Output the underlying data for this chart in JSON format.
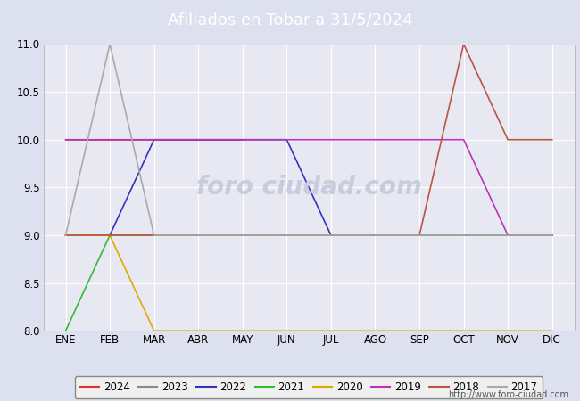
{
  "title": "Afiliados en Tobar a 31/5/2024",
  "xlabel": "",
  "ylabel": "",
  "ylim": [
    8.0,
    11.0
  ],
  "yticks": [
    8.0,
    8.5,
    9.0,
    9.5,
    10.0,
    10.5,
    11.0
  ],
  "months": [
    "ENE",
    "FEB",
    "MAR",
    "ABR",
    "MAY",
    "JUN",
    "JUL",
    "AGO",
    "SEP",
    "OCT",
    "NOV",
    "DIC"
  ],
  "month_indices": [
    1,
    2,
    3,
    4,
    5,
    6,
    7,
    8,
    9,
    10,
    11,
    12
  ],
  "background_color": "#dde0ef",
  "plot_bg_color": "#e8e8f2",
  "title_bg_color": "#5577cc",
  "title_text_color": "#ffffff",
  "url": "http://www.foro-ciudad.com",
  "series": [
    {
      "label": "2024",
      "color": "#dd3333",
      "data": [
        [
          1,
          10
        ],
        [
          2,
          10
        ],
        [
          3,
          10
        ],
        [
          4,
          10
        ],
        [
          5,
          10
        ]
      ],
      "linestyle": "-"
    },
    {
      "label": "2023",
      "color": "#888888",
      "data": [
        [
          1,
          9
        ],
        [
          2,
          9
        ],
        [
          3,
          9
        ],
        [
          4,
          9
        ],
        [
          5,
          9
        ],
        [
          6,
          9
        ],
        [
          7,
          9
        ],
        [
          8,
          9
        ],
        [
          9,
          9
        ],
        [
          10,
          9
        ],
        [
          11,
          9
        ],
        [
          12,
          9
        ]
      ],
      "linestyle": "-"
    },
    {
      "label": "2022",
      "color": "#3333bb",
      "data": [
        [
          1,
          9
        ],
        [
          2,
          9
        ],
        [
          3,
          10
        ],
        [
          4,
          10
        ],
        [
          5,
          10
        ],
        [
          6,
          10
        ],
        [
          7,
          9
        ],
        [
          8,
          9
        ],
        [
          9,
          9
        ],
        [
          10,
          9
        ],
        [
          11,
          9
        ],
        [
          12,
          9
        ]
      ],
      "linestyle": "-"
    },
    {
      "label": "2021",
      "color": "#33bb33",
      "data": [
        [
          1,
          8
        ],
        [
          2,
          9
        ],
        [
          3,
          9
        ],
        [
          4,
          9
        ],
        [
          5,
          9
        ],
        [
          6,
          9
        ],
        [
          7,
          9
        ],
        [
          8,
          9
        ],
        [
          9,
          9
        ],
        [
          10,
          9
        ],
        [
          11,
          9
        ],
        [
          12,
          9
        ]
      ],
      "linestyle": "-"
    },
    {
      "label": "2020",
      "color": "#ddaa00",
      "data": [
        [
          1,
          9
        ],
        [
          2,
          9
        ],
        [
          3,
          8
        ],
        [
          4,
          8
        ],
        [
          5,
          8
        ],
        [
          6,
          8
        ],
        [
          7,
          8
        ],
        [
          8,
          8
        ],
        [
          9,
          8
        ],
        [
          10,
          8
        ],
        [
          11,
          8
        ],
        [
          12,
          8
        ]
      ],
      "linestyle": "-"
    },
    {
      "label": "2019",
      "color": "#bb33bb",
      "data": [
        [
          1,
          10
        ],
        [
          2,
          10
        ],
        [
          3,
          10
        ],
        [
          4,
          10
        ],
        [
          5,
          10
        ],
        [
          6,
          10
        ],
        [
          7,
          10
        ],
        [
          8,
          10
        ],
        [
          9,
          10
        ],
        [
          10,
          10
        ],
        [
          11,
          9
        ],
        [
          12,
          9
        ]
      ],
      "linestyle": "-"
    },
    {
      "label": "2018",
      "color": "#bb5544",
      "data": [
        [
          1,
          9
        ],
        [
          2,
          9
        ],
        [
          3,
          9
        ],
        [
          4,
          9
        ],
        [
          5,
          9
        ],
        [
          6,
          9
        ],
        [
          7,
          9
        ],
        [
          8,
          9
        ],
        [
          9,
          9
        ],
        [
          10,
          11
        ],
        [
          11,
          10
        ],
        [
          12,
          10
        ]
      ],
      "linestyle": "-"
    },
    {
      "label": "2017",
      "color": "#aaaaaa",
      "data": [
        [
          1,
          9
        ],
        [
          2,
          11
        ],
        [
          3,
          9
        ],
        [
          4,
          9
        ],
        [
          5,
          9
        ],
        [
          6,
          9
        ],
        [
          7,
          9
        ],
        [
          8,
          9
        ],
        [
          9,
          9
        ],
        [
          10,
          9
        ],
        [
          11,
          9
        ],
        [
          12,
          9
        ]
      ],
      "linestyle": "-"
    }
  ],
  "grid_color": "#ffffff",
  "tick_fontsize": 8.5,
  "legend_fontsize": 8.5,
  "watermark_color": "#c8ccdd",
  "watermark_text": "foro ciudad.com"
}
